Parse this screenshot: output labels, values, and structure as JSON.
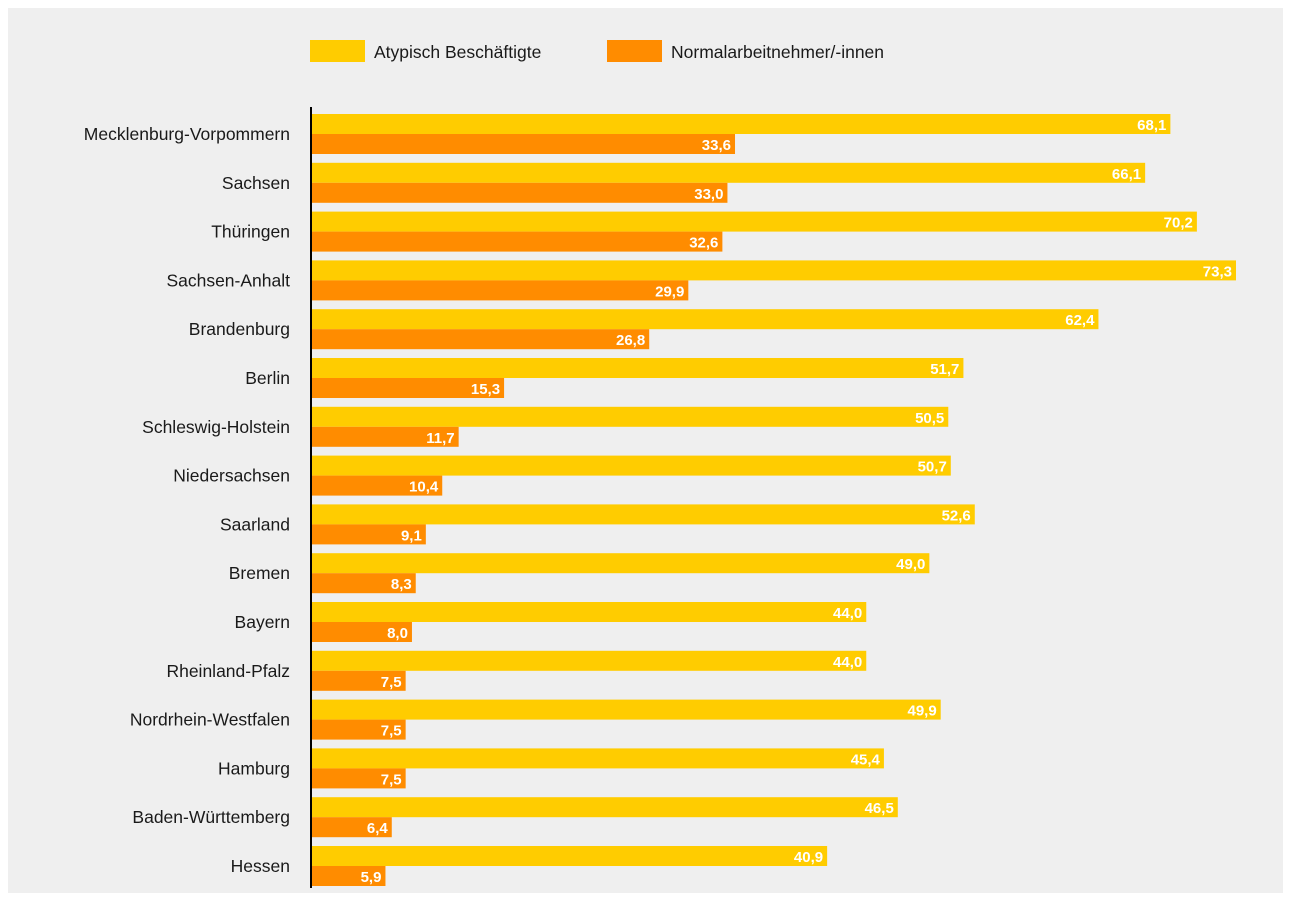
{
  "chart_data": {
    "type": "bar",
    "orientation": "horizontal",
    "categories": [
      "Mecklenburg-Vorpommern",
      "Sachsen",
      "Thüringen",
      "Sachsen-Anhalt",
      "Brandenburg",
      "Berlin",
      "Schleswig-Holstein",
      "Niedersachsen",
      "Saarland",
      "Bremen",
      "Bayern",
      "Rheinland-Pfalz",
      "Nordrhein-Westfalen",
      "Hamburg",
      "Baden-Württemberg",
      "Hessen"
    ],
    "series": [
      {
        "name": "Atypisch Beschäftigte",
        "color": "#ffcc00",
        "values": [
          68.1,
          66.1,
          70.2,
          73.3,
          62.4,
          51.7,
          50.5,
          50.7,
          52.6,
          49.0,
          44.0,
          44.0,
          49.9,
          45.4,
          46.5,
          40.9
        ],
        "labels": [
          "68,1",
          "66,1",
          "70,2",
          "73,3",
          "62,4",
          "51,7",
          "50,5",
          "50,7",
          "52,6",
          "49,0",
          "44,0",
          "44,0",
          "49,9",
          "45,4",
          "46,5",
          "40,9"
        ]
      },
      {
        "name": "Normalarbeitnehmer/-innen",
        "color": "#ff8c00",
        "values": [
          33.6,
          33.0,
          32.6,
          29.9,
          26.8,
          15.3,
          11.7,
          10.4,
          9.1,
          8.3,
          8.0,
          7.5,
          7.5,
          7.5,
          6.4,
          5.9
        ],
        "labels": [
          "33,6",
          "33,0",
          "32,6",
          "29,9",
          "26,8",
          "15,3",
          "11,7",
          "10,4",
          "9,1",
          "8,3",
          "8,0",
          "7,5",
          "7,5",
          "7,5",
          "6,4",
          "5,9"
        ]
      }
    ],
    "xlim": [
      0,
      80
    ],
    "legend_position": "top-center",
    "grid": false,
    "background": "#efefef"
  }
}
